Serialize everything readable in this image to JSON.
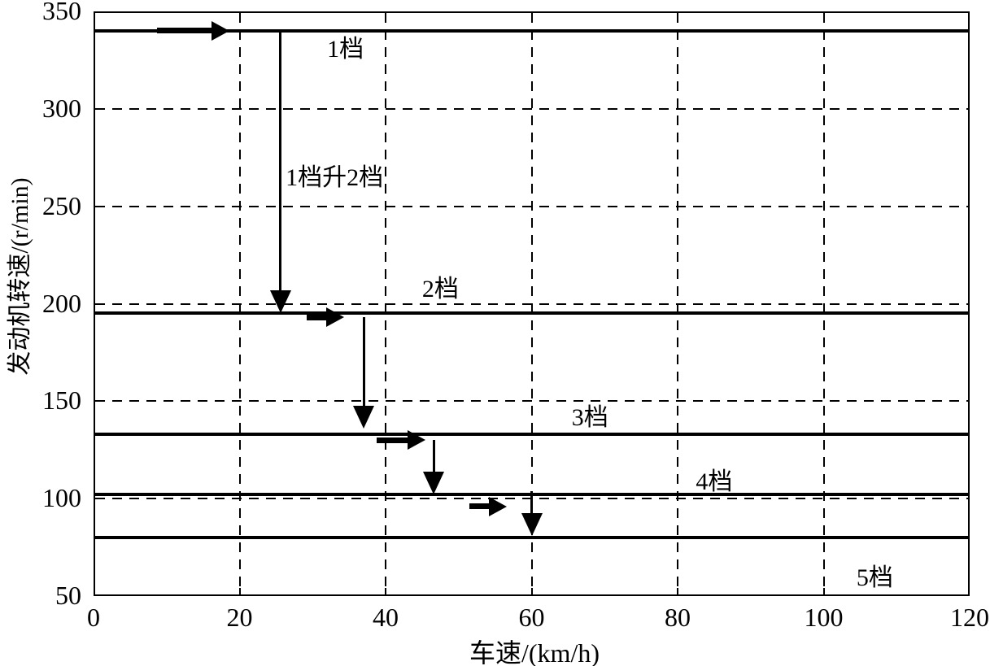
{
  "chart_data": {
    "type": "line",
    "title": "",
    "xlabel": "车速/(km/h)",
    "ylabel": "发动机转速/(r/min)",
    "xlim": [
      0,
      120
    ],
    "ylim": [
      50,
      350
    ],
    "x_ticks": [
      0,
      20,
      40,
      60,
      80,
      100,
      120
    ],
    "y_ticks": [
      350,
      300,
      250,
      200,
      150,
      100,
      50
    ],
    "grid": "dashed-both-axes",
    "legend_position": "none",
    "colors": {
      "line": "#000000",
      "background": "#ffffff",
      "text": "#000000"
    },
    "gear_lines": [
      {
        "label": "1档",
        "rpm": 340,
        "label_x": 34.5,
        "label_rpm": 332
      },
      {
        "label": "2档",
        "rpm": 195,
        "label_x": 47.5,
        "label_rpm": 209
      },
      {
        "label": "3档",
        "rpm": 133,
        "label_x": 68,
        "label_rpm": 143
      },
      {
        "label": "4档",
        "rpm": 102,
        "label_x": 85,
        "label_rpm": 110
      },
      {
        "label": "5档",
        "rpm": 80,
        "label_x": 107,
        "label_rpm": 61
      }
    ],
    "shift_annotation": {
      "text": "1档升2档",
      "x": 33,
      "rpm": 266
    },
    "shift_arrows": [
      {
        "kind": "right",
        "x_from": 8.7,
        "x_to": 18.6,
        "rpm": 340
      },
      {
        "kind": "down",
        "x": 25.6,
        "rpm_from": 340,
        "rpm_to": 195
      },
      {
        "kind": "right",
        "x_from": 29.2,
        "x_to": 34.3,
        "rpm": 193
      },
      {
        "kind": "down",
        "x": 37,
        "rpm_from": 193,
        "rpm_to": 136
      },
      {
        "kind": "right",
        "x_from": 38.8,
        "x_to": 45.5,
        "rpm": 130
      },
      {
        "kind": "down",
        "x": 46.6,
        "rpm_from": 130,
        "rpm_to": 102
      },
      {
        "kind": "right",
        "x_from": 51.5,
        "x_to": 56.6,
        "rpm": 96
      },
      {
        "kind": "down",
        "x": 60,
        "rpm_from": 104,
        "rpm_to": 81
      }
    ],
    "upshift_points_kmh": {
      "1_to_2": 26,
      "2_to_3": 37,
      "3_to_4": 47,
      "4_to_5": 60
    }
  }
}
